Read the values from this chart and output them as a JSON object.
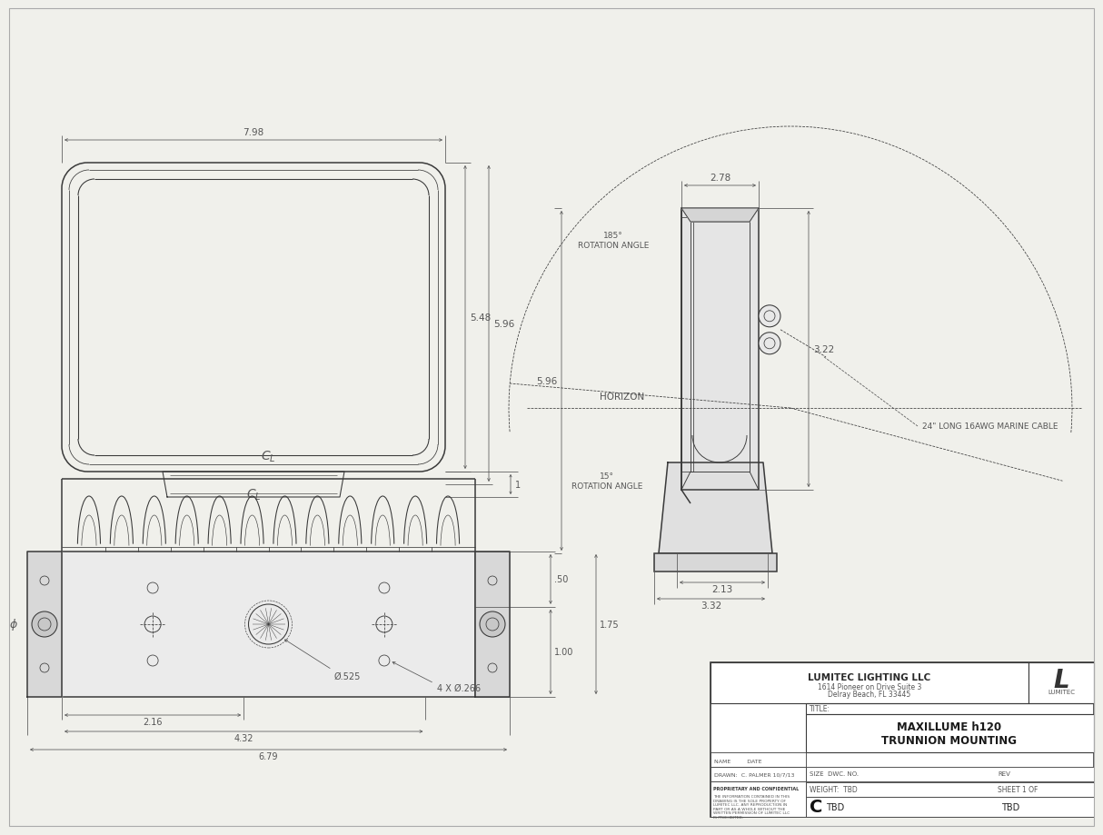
{
  "bg_color": "#f0f0eb",
  "line_color": "#3a3a3a",
  "dim_color": "#555555",
  "title": "MAXILLUME h120\nTRUNNION MOUNTING",
  "company": "LUMITEC LIGHTING LLC",
  "company_addr": "1614 Pioneer on Drive Suite 3\nDelray Beach, FL 33445",
  "drawn_by": "C. PALMER",
  "drawn_date": "10/7/13",
  "size": "C",
  "dwg_no": "TBD",
  "rev": "TBD",
  "weight": "TBD",
  "sheet": "SHEET 1 OF",
  "dim_798": "7.98",
  "dim_548": "5.48",
  "dim_596": "5.96",
  "dim_1": "1",
  "dim_278": "2.78",
  "dim_322": "3.22",
  "dim_213": "2.13",
  "dim_332": "3.32",
  "dim_185_rot": "185°\nROTATION ANGLE",
  "dim_15_rot": "15°\nROTATION ANGLE",
  "horizon": "HORIZON",
  "cable_label": "24\" LONG 16AWG MARINE CABLE",
  "dim_216": "2.16",
  "dim_432": "4.32",
  "dim_525": "Ø.525",
  "dim_679": "6.79",
  "dim_4x_266": "4 X Ø.266",
  "dim_50": ".50",
  "dim_175": "1.75",
  "dim_100": "1.00",
  "lw_main": 1.1,
  "lw_dim": 0.55,
  "lw_thin": 0.45
}
